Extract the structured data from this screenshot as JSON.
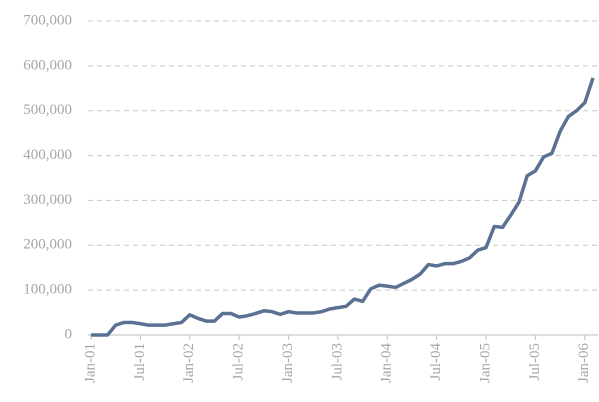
{
  "chart_data": {
    "type": "line",
    "categories": [
      "Jan-01",
      null,
      null,
      null,
      null,
      null,
      "Jul-01",
      null,
      null,
      null,
      null,
      null,
      "Jan-02",
      null,
      null,
      null,
      null,
      null,
      "Jul-02",
      null,
      null,
      null,
      null,
      null,
      "Jan-03",
      null,
      null,
      null,
      null,
      null,
      "Jul-03",
      null,
      null,
      null,
      null,
      null,
      "Jan-04",
      null,
      null,
      null,
      null,
      null,
      "Jul-04",
      null,
      null,
      null,
      null,
      null,
      "Jan-05",
      null,
      null,
      null,
      null,
      null,
      "Jul-05",
      null,
      null,
      null,
      null,
      null,
      "Jan-06",
      null
    ],
    "series": [
      {
        "color": "#5b7194",
        "values": [
          0,
          0,
          0,
          22000,
          28000,
          28000,
          25000,
          22000,
          22000,
          22000,
          25000,
          28000,
          45000,
          37000,
          31000,
          31000,
          48000,
          48000,
          40000,
          43000,
          48000,
          54000,
          52000,
          46000,
          52000,
          49000,
          49000,
          49000,
          52000,
          58000,
          61000,
          64000,
          80000,
          75000,
          103000,
          111000,
          109000,
          106000,
          115000,
          124000,
          136000,
          157000,
          154000,
          159000,
          159000,
          164000,
          172000,
          189000,
          195000,
          242000,
          240000,
          267000,
          296000,
          355000,
          366000,
          397000,
          405000,
          454000,
          487000,
          500000,
          518000,
          573000
        ]
      }
    ],
    "ylim": [
      0,
      700000
    ],
    "yticks": [
      0,
      {
        "value": 100000,
        "label": "100,000"
      },
      {
        "value": 200000,
        "label": "200,000"
      },
      {
        "value": 300000,
        "label": "300,000"
      },
      {
        "value": 400000,
        "label": "400,000"
      },
      {
        "value": 500000,
        "label": "500,000"
      },
      {
        "value": 600000,
        "label": "600,000"
      },
      {
        "value": 700000,
        "label": "700,000"
      }
    ],
    "grid": true
  }
}
